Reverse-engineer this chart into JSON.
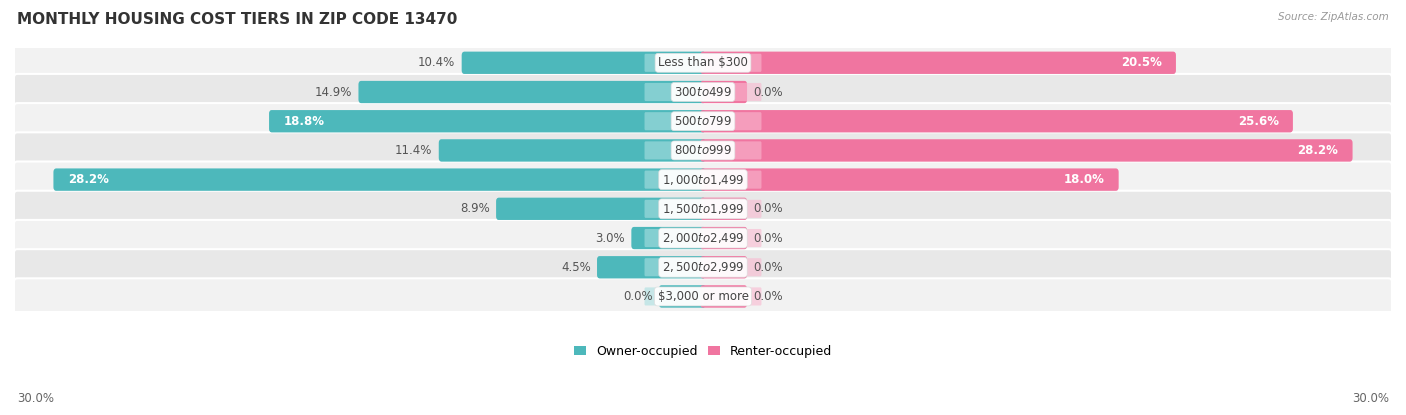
{
  "title": "MONTHLY HOUSING COST TIERS IN ZIP CODE 13470",
  "source": "Source: ZipAtlas.com",
  "categories": [
    "Less than $300",
    "$300 to $499",
    "$500 to $799",
    "$800 to $999",
    "$1,000 to $1,499",
    "$1,500 to $1,999",
    "$2,000 to $2,499",
    "$2,500 to $2,999",
    "$3,000 or more"
  ],
  "owner_values": [
    10.4,
    14.9,
    18.8,
    11.4,
    28.2,
    8.9,
    3.0,
    4.5,
    0.0
  ],
  "renter_values": [
    20.5,
    0.0,
    25.6,
    28.2,
    18.0,
    0.0,
    0.0,
    0.0,
    0.0
  ],
  "owner_color": "#4db8bb",
  "renter_color": "#f075a0",
  "owner_color_light": "#aadfe0",
  "renter_color_light": "#f9b8d0",
  "row_bg_even": "#f2f2f2",
  "row_bg_odd": "#e8e8e8",
  "xlim": 30.0,
  "stub_size": 1.8,
  "title_fontsize": 11,
  "value_fontsize": 8.5,
  "cat_fontsize": 8.5,
  "legend_fontsize": 9
}
